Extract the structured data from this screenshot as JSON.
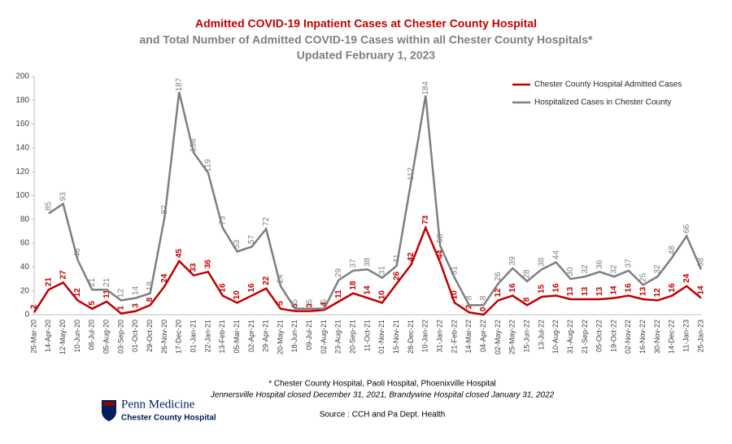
{
  "chart_data": {
    "type": "line",
    "title": "Admitted COVID-19 Inpatient Cases at Chester County Hospital",
    "subtitle": "and Total Number of Admitted COVID-19 Cases within all Chester County Hospitals*",
    "updated": "Updated February 1, 2023",
    "categories": [
      "25-Mar-20",
      "14-Apr-20",
      "12-May-20",
      "10-Jun-20",
      "08-Jul-20",
      "05-Aug-20",
      "03-Sep-20",
      "01-Oct-20",
      "29-Oct-20",
      "26-Nov-20",
      "17-Dec-20",
      "01-Jan-21",
      "22-Jan-21",
      "13-Feb-21",
      "05-Mar-21",
      "02-Apr-21",
      "29-Apr-21",
      "20-May-21",
      "18-Jun-21",
      "09-Jul-21",
      "02-Aug-21",
      "23-Aug-21",
      "20-Sep-21",
      "11-Oct-21",
      "01-Nov-21",
      "15-Nov-21",
      "28-Dec-21",
      "10-Jan-22",
      "31-Jan-22",
      "21-Feb-22",
      "14-Mar-22",
      "04-Apr-22",
      "02-May-22",
      "25-May-22",
      "15-Jun-22",
      "13-Jul-22",
      "10-Aug-22",
      "31-Aug-22",
      "21-Sep-22",
      "05-Oct-22",
      "19-Oct-22",
      "02-Nov-22",
      "16-Nov-22",
      "30-Nov-22",
      "14-Dec-22",
      "11-Jan-23",
      "25-Jan-23"
    ],
    "series": [
      {
        "name": "Chester County Hospital Admitted Cases",
        "color": "#c00000",
        "values": [
          2,
          21,
          27,
          12,
          5,
          11,
          1,
          3,
          8,
          24,
          45,
          33,
          36,
          16,
          10,
          16,
          22,
          5,
          3,
          3,
          4,
          11,
          18,
          14,
          10,
          26,
          42,
          73,
          44,
          10,
          2,
          0,
          12,
          16,
          8,
          15,
          16,
          13,
          13,
          13,
          14,
          16,
          13,
          12,
          16,
          24,
          14
        ]
      },
      {
        "name": "Hospitalized Cases in Chester County",
        "color": "#7f7f7f",
        "values": [
          null,
          85,
          93,
          46,
          21,
          21,
          12,
          14,
          18,
          82,
          187,
          136,
          119,
          73,
          53,
          57,
          72,
          24,
          5,
          5,
          5,
          29,
          37,
          38,
          31,
          41,
          112,
          184,
          58,
          31,
          8,
          8,
          26,
          39,
          28,
          38,
          44,
          30,
          32,
          36,
          32,
          37,
          25,
          32,
          48,
          66,
          38
        ]
      }
    ],
    "ylim": [
      0,
      200
    ],
    "yticks": [
      0,
      20,
      40,
      60,
      80,
      100,
      120,
      140,
      160,
      180,
      200
    ],
    "legend": "top-right",
    "footnote": "* Chester County Hospital,  Paoli Hospital, Phoenixville Hospital",
    "footnote2": "Jennersville Hospital closed December 31, 2021, Brandywine Hospital closed January 31, 2022",
    "source": "Source : CCH and Pa Dept. Health"
  },
  "logo": {
    "name": "Penn Medicine",
    "sub": "Chester County Hospital"
  }
}
